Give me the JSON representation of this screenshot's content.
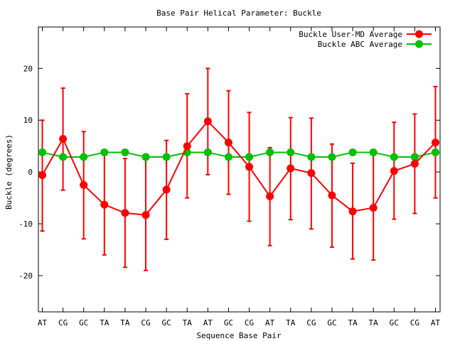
{
  "chart_data": {
    "type": "line",
    "title": "Base Pair Helical Parameter: Buckle",
    "xlabel": "Sequence Base Pair",
    "ylabel": "Buckle (degrees)",
    "ylim": [
      -27,
      28
    ],
    "yticks": [
      -20,
      -10,
      0,
      10,
      20
    ],
    "grid": false,
    "legend_position": "top-right",
    "categories": [
      "AT",
      "CG",
      "GC",
      "TA",
      "TA",
      "CG",
      "GC",
      "TA",
      "AT",
      "GC",
      "CG",
      "AT",
      "TA",
      "CG",
      "GC",
      "TA",
      "TA",
      "GC",
      "CG",
      "AT"
    ],
    "series": [
      {
        "name": "Buckle User-MD Average",
        "color": "#ff0000",
        "values": [
          -0.6,
          6.4,
          -2.5,
          -6.3,
          -7.9,
          -8.3,
          -3.4,
          5.0,
          9.8,
          5.7,
          1.0,
          -4.7,
          0.7,
          -0.2,
          -4.5,
          -7.6,
          -6.9,
          0.2,
          1.6,
          5.7
        ],
        "error_low": [
          -11.4,
          -3.5,
          -12.9,
          -16.0,
          -18.4,
          -19.0,
          -13.0,
          -5.0,
          -0.5,
          -4.3,
          -9.5,
          -14.2,
          -9.2,
          -11.0,
          -14.5,
          -16.8,
          -17.0,
          -9.1,
          -8.0,
          -5.0
        ],
        "error_high": [
          10.0,
          16.2,
          7.8,
          3.8,
          2.6,
          2.5,
          6.1,
          15.1,
          20.0,
          15.7,
          11.5,
          4.7,
          10.5,
          10.4,
          5.4,
          1.7,
          3.3,
          9.6,
          11.2,
          16.5
        ]
      },
      {
        "name": "Buckle ABC Average",
        "color": "#00c000",
        "values": [
          3.8,
          2.9,
          2.9,
          3.8,
          3.8,
          2.9,
          2.9,
          3.8,
          3.8,
          2.9,
          2.9,
          3.8,
          3.8,
          2.9,
          2.9,
          3.8,
          3.8,
          2.9,
          2.9,
          3.8
        ]
      }
    ]
  }
}
